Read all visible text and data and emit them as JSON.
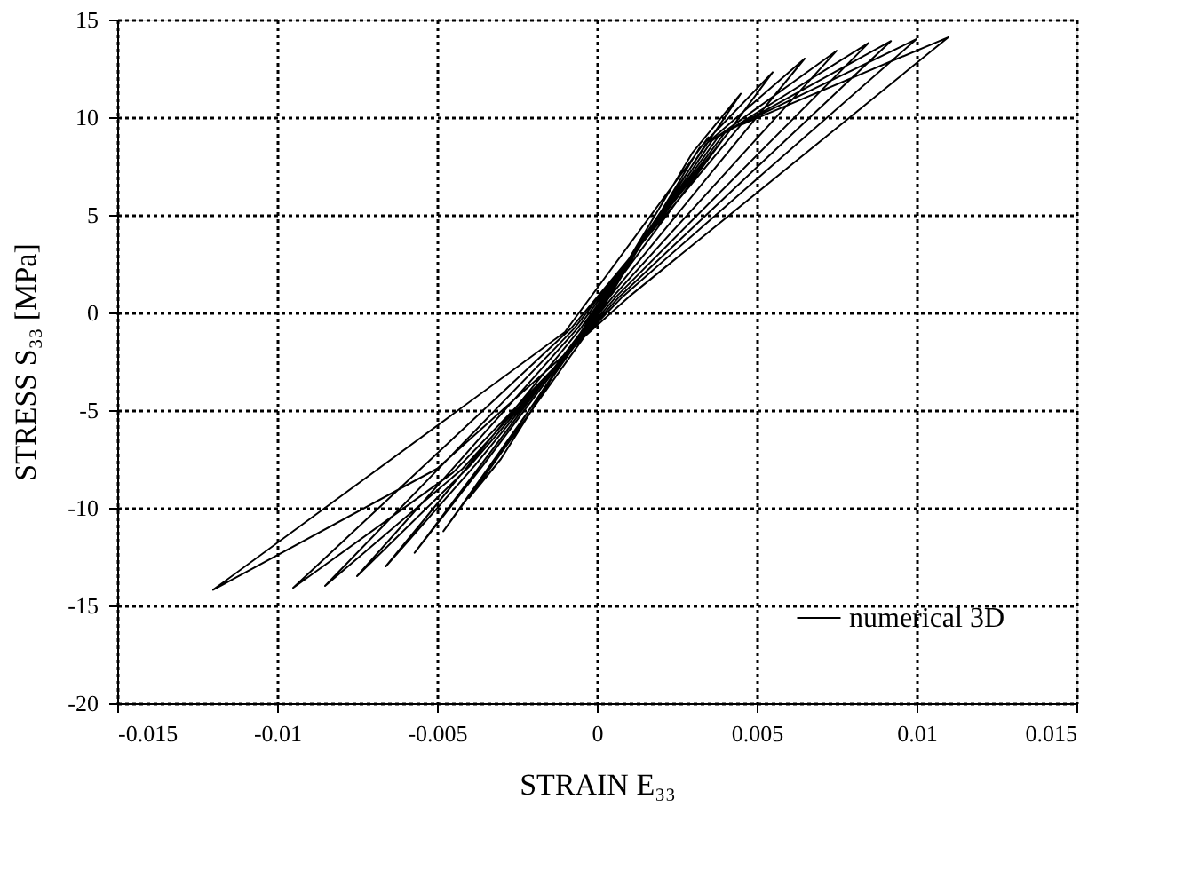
{
  "chart_data": {
    "type": "line",
    "xlabel": "STRAIN E₃₃",
    "ylabel": "STRESS  S₃₃ [MPa]",
    "xlim": [
      -0.015,
      0.015
    ],
    "xticks": [
      -0.015,
      -0.01,
      -0.005,
      0,
      0.005,
      0.01,
      0.015
    ],
    "ylim": [
      -20,
      15
    ],
    "yticks": [
      -20,
      -15,
      -10,
      -5,
      0,
      5,
      10,
      15
    ],
    "grid": true,
    "legend": "bottom right",
    "line_style": "solid",
    "series": [
      {
        "name": "numerical 3D",
        "color": "#000000",
        "x": [
          0,
          0.003,
          0.0045,
          0.0002,
          -0.003,
          -0.004,
          -0.0002,
          0.0032,
          0.0055,
          0.0003,
          -0.0032,
          -0.0048,
          -0.0003,
          0.0034,
          0.0065,
          0.0004,
          -0.0035,
          -0.0057,
          -0.0004,
          0.0036,
          0.0075,
          0.0005,
          -0.0038,
          -0.0066,
          -0.0005,
          0.0038,
          0.0085,
          0.0006,
          -0.004,
          -0.0075,
          -0.0006,
          0.004,
          0.0092,
          0.0007,
          -0.0042,
          -0.0085,
          -0.0007,
          0.0042,
          0.01,
          0.0008,
          -0.0045,
          -0.0095,
          -0.0008,
          0.0045,
          0.011,
          0.001,
          -0.005,
          -0.012,
          -0.001,
          0.0035
        ],
        "values": [
          0,
          8.2,
          11.2,
          0.8,
          -7.5,
          -9.5,
          -0.8,
          8.4,
          12.3,
          0.8,
          -7.6,
          -11.2,
          -0.8,
          8.6,
          13,
          0.8,
          -7.7,
          -12.3,
          -0.8,
          8.8,
          13.4,
          0.8,
          -7.8,
          -13,
          -0.8,
          9,
          13.8,
          0.8,
          -7.9,
          -13.5,
          -0.8,
          9.2,
          13.9,
          0.8,
          -8,
          -14,
          -0.8,
          9.4,
          14,
          0.8,
          -8.2,
          -14.1,
          -0.8,
          9.6,
          14.1,
          0.8,
          -8,
          -14.2,
          -1,
          9
        ]
      }
    ]
  }
}
